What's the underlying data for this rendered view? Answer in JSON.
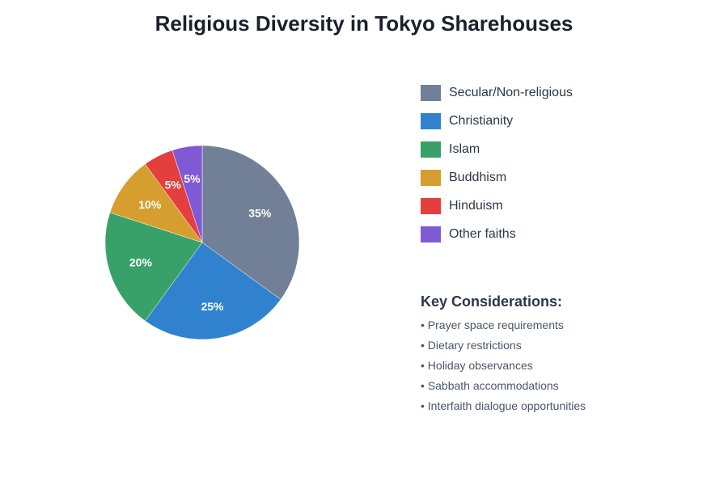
{
  "title": "Religious Diversity in Tokyo Sharehouses",
  "chart_data": {
    "type": "pie",
    "title": "Religious Diversity in Tokyo Sharehouses",
    "categories": [
      "Secular/Non-religious",
      "Christianity",
      "Islam",
      "Buddhism",
      "Hinduism",
      "Other faiths"
    ],
    "values": [
      35,
      25,
      20,
      10,
      5,
      5
    ],
    "labels": [
      "35%",
      "25%",
      "20%",
      "10%",
      "5%",
      "5%"
    ],
    "colors": [
      "#718096",
      "#3182ce",
      "#38a169",
      "#d69e2e",
      "#e53e3e",
      "#805ad5"
    ],
    "legend_position": "right",
    "start_angle": "12 o'clock, clockwise"
  },
  "legend": {
    "items": [
      {
        "label": "Secular/Non-religious",
        "color": "#718096"
      },
      {
        "label": "Christianity",
        "color": "#3182ce"
      },
      {
        "label": "Islam",
        "color": "#38a169"
      },
      {
        "label": "Buddhism",
        "color": "#d69e2e"
      },
      {
        "label": "Hinduism",
        "color": "#e53e3e"
      },
      {
        "label": "Other faiths",
        "color": "#805ad5"
      }
    ]
  },
  "considerations": {
    "title": "Key Considerations:",
    "items": [
      "• Prayer space requirements",
      "• Dietary restrictions",
      "• Holiday observances",
      "• Sabbath accommodations",
      "• Interfaith dialogue opportunities"
    ]
  }
}
